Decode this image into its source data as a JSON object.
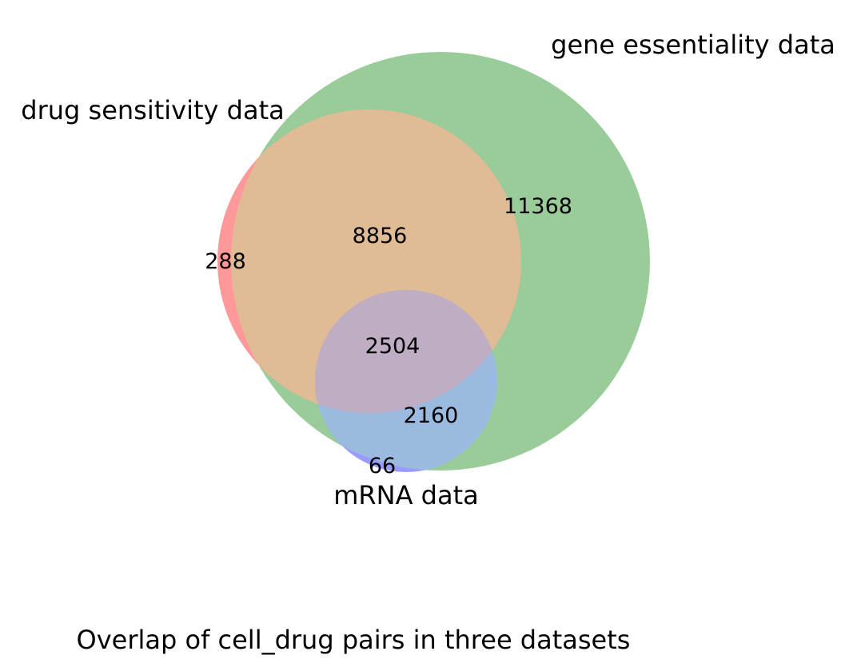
{
  "chart_data": {
    "type": "venn3",
    "title": "Overlap of cell_drug pairs in three datasets",
    "sets": [
      {
        "key": "A",
        "name": "drug sensitivity data",
        "color": "#ff6666"
      },
      {
        "key": "B",
        "name": "gene essentiality data",
        "color": "#66b266"
      },
      {
        "key": "C",
        "name": "mRNA data",
        "color": "#6666ff"
      }
    ],
    "regions": {
      "A_only": 288,
      "B_only": 11368,
      "A_and_B_only": 8856,
      "A_and_B_and_C": 2504,
      "B_and_C_only": 2160,
      "C_only": 66
    },
    "region_labels": {
      "A_only": "288",
      "B_only": "11368",
      "A_and_B_only": "8856",
      "A_and_B_and_C": "2504",
      "B_and_C_only": "2160",
      "C_only": "66"
    },
    "colors": {
      "A_only": "#ff9999",
      "B_only": "#99cc99",
      "A_and_B_only": "#dfbb96",
      "A_and_B_and_C": "#bfadc4",
      "B_and_C_only": "#9abbdf",
      "C_only": "#9a9aff"
    }
  }
}
